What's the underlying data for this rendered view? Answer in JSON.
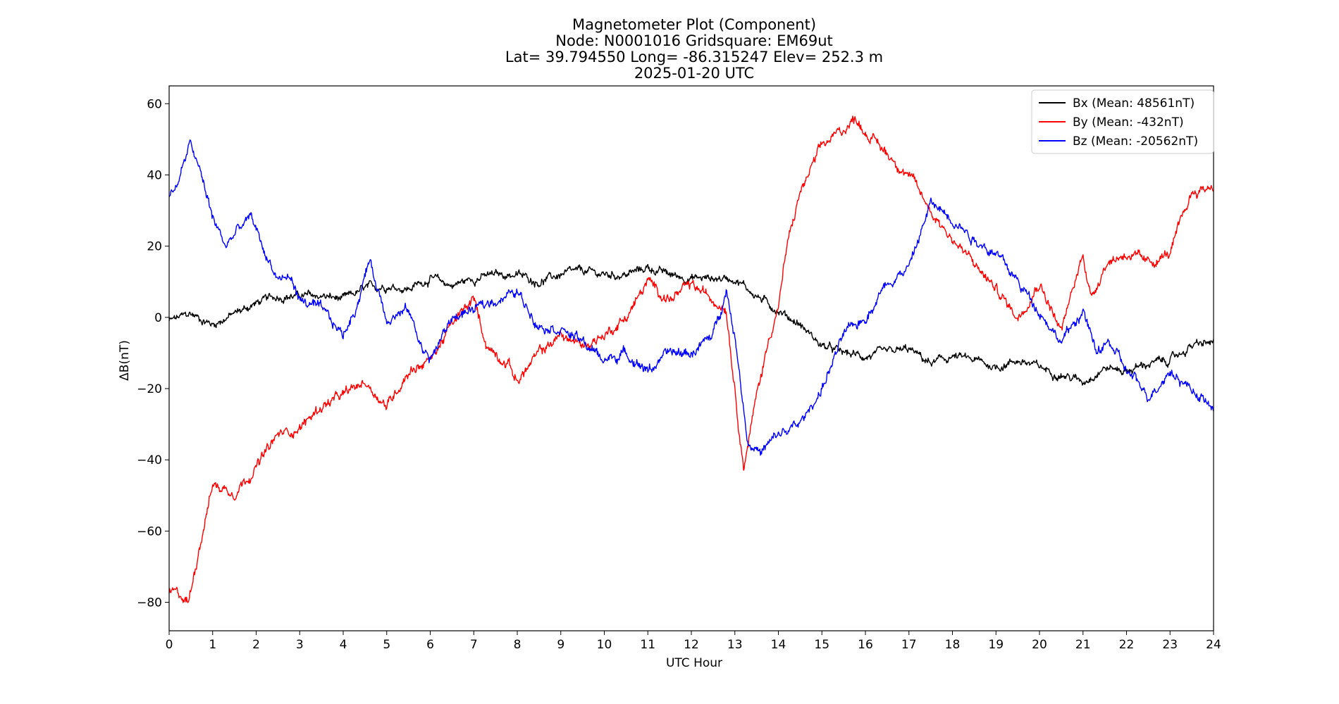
{
  "chart_data": {
    "type": "line",
    "title_lines": [
      "Magnetometer Plot (Component)",
      "Node:  N0001016     Gridsquare:  EM69ut",
      "Lat= 39.794550    Long= -86.315247    Elev= 252.3 m",
      "2025-01-20  UTC"
    ],
    "xlabel": "UTC Hour",
    "ylabel": "ΔB(nT)",
    "xlim": [
      0,
      24
    ],
    "ylim": [
      -88,
      65
    ],
    "x_ticks": [
      0,
      1,
      2,
      3,
      4,
      5,
      6,
      7,
      8,
      9,
      10,
      11,
      12,
      13,
      14,
      15,
      16,
      17,
      18,
      19,
      20,
      21,
      22,
      23,
      24
    ],
    "y_ticks": [
      -80,
      -60,
      -40,
      -20,
      0,
      20,
      40,
      60
    ],
    "y_tick_labels": [
      "−80",
      "−60",
      "−40",
      "−20",
      "0",
      "20",
      "40",
      "60"
    ],
    "legend_position": "top-right",
    "series": [
      {
        "name": "Bx",
        "label": "Bx (Mean: 48561nT)",
        "color": "#000000",
        "noise": 1.2,
        "x": [
          0,
          0.5,
          1,
          1.5,
          2,
          2.5,
          3,
          3.5,
          4,
          4.5,
          5,
          5.5,
          6,
          6.5,
          7,
          7.5,
          8,
          8.5,
          9,
          9.5,
          10,
          10.5,
          11,
          11.5,
          12,
          12.5,
          13,
          13.5,
          14,
          14.5,
          15,
          15.5,
          16,
          16.5,
          17,
          17.5,
          18,
          18.5,
          19,
          19.5,
          20,
          20.5,
          21,
          21.5,
          22,
          22.5,
          23,
          23.5,
          24
        ],
        "y": [
          -1,
          1,
          -2,
          1,
          4,
          6,
          6,
          6,
          5,
          8,
          9,
          8,
          11,
          9,
          11,
          12,
          12,
          10,
          12,
          13,
          12,
          12,
          14,
          12,
          11,
          11,
          11,
          6,
          2,
          -2,
          -8,
          -10,
          -11,
          -10,
          -9,
          -13,
          -11,
          -12,
          -14,
          -12,
          -14,
          -16,
          -18,
          -14,
          -15,
          -13,
          -12,
          -8,
          -7
        ]
      },
      {
        "name": "By",
        "label": "By (Mean: -432nT)",
        "color": "#ff0000",
        "noise": 1.5,
        "x": [
          0,
          0.25,
          0.45,
          0.6,
          0.8,
          1.0,
          1.5,
          2.0,
          2.5,
          3.0,
          3.5,
          4.0,
          4.5,
          5.0,
          5.5,
          6.0,
          6.5,
          7.0,
          7.3,
          7.8,
          8.0,
          8.5,
          9.0,
          9.5,
          10.0,
          10.5,
          11.0,
          11.5,
          12.0,
          12.5,
          12.8,
          13.0,
          13.2,
          13.5,
          13.8,
          14.0,
          14.2,
          14.5,
          15.0,
          15.5,
          15.8,
          16.0,
          16.5,
          17.0,
          17.5,
          18.0,
          18.5,
          19.0,
          19.5,
          20.0,
          20.5,
          21.0,
          21.2,
          21.5,
          22.0,
          22.5,
          23.0,
          23.5,
          24.0
        ],
        "y": [
          -77,
          -78,
          -80,
          -70,
          -58,
          -47,
          -49,
          -42,
          -33,
          -31,
          -25,
          -22,
          -18,
          -25,
          -15,
          -12,
          -2,
          5,
          -8,
          -13,
          -18,
          -10,
          -5,
          -8,
          -5,
          0,
          10,
          5,
          9,
          5,
          3,
          -20,
          -42,
          -22,
          -5,
          3,
          20,
          35,
          48,
          53,
          56,
          52,
          46,
          40,
          30,
          22,
          15,
          8,
          0,
          10,
          -4,
          18,
          5,
          15,
          18,
          15,
          18,
          35,
          37
        ]
      },
      {
        "name": "Bz",
        "label": "Bz (Mean: -20562nT)",
        "color": "#0000ff",
        "noise": 1.5,
        "x": [
          0,
          0.2,
          0.5,
          0.8,
          1.0,
          1.3,
          1.6,
          1.9,
          2.2,
          2.5,
          2.8,
          3.0,
          3.5,
          4.0,
          4.3,
          4.6,
          5.0,
          5.5,
          5.8,
          6.0,
          6.5,
          7.0,
          7.5,
          8.0,
          8.5,
          9.0,
          9.5,
          10.0,
          10.5,
          11.0,
          11.5,
          12.0,
          12.5,
          12.8,
          13.0,
          13.3,
          13.6,
          14.0,
          14.5,
          15.0,
          15.5,
          16.0,
          16.5,
          17.0,
          17.5,
          18.0,
          18.5,
          19.0,
          19.5,
          20.0,
          20.5,
          21.0,
          21.3,
          21.6,
          22.0,
          22.5,
          23.0,
          23.5,
          24.0
        ],
        "y": [
          33,
          38,
          49,
          37,
          28,
          20,
          25,
          28,
          18,
          11,
          11,
          5,
          2,
          -5,
          3,
          16,
          0,
          2,
          -8,
          -12,
          0,
          2,
          5,
          7,
          -2,
          -3,
          -7,
          -12,
          -10,
          -15,
          -10,
          -10,
          -5,
          8,
          -5,
          -35,
          -38,
          -33,
          -30,
          -20,
          -5,
          0,
          10,
          14,
          32,
          28,
          22,
          18,
          10,
          2,
          -7,
          2,
          -10,
          -7,
          -15,
          -22,
          -15,
          -20,
          -26
        ]
      }
    ]
  }
}
